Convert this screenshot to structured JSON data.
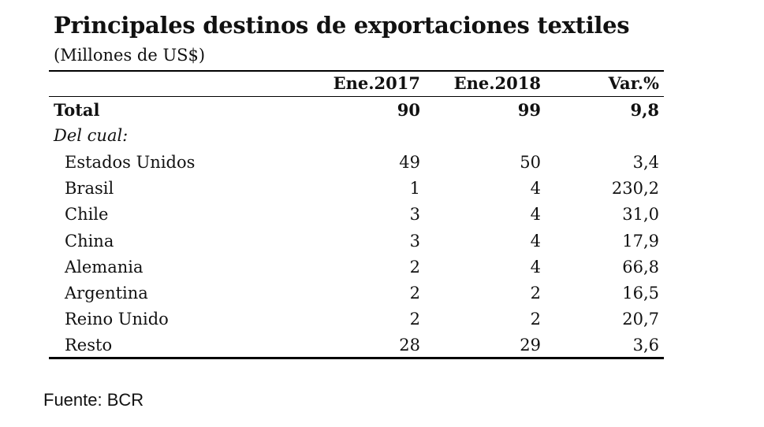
{
  "title": "Principales destinos de exportaciones textiles",
  "subtitle": "(Millones de US$)",
  "table": {
    "columns": [
      "Ene.2017",
      "Ene.2018",
      "Var.%"
    ],
    "total": [
      "Total",
      "90",
      "99",
      "9,8"
    ],
    "subheader": "Del cual:",
    "rows": [
      [
        "Estados Unidos",
        "49",
        "50",
        "3,4"
      ],
      [
        "Brasil",
        "1",
        "4",
        "230,2"
      ],
      [
        "Chile",
        "3",
        "4",
        "31,0"
      ],
      [
        "China",
        "3",
        "4",
        "17,9"
      ],
      [
        "Alemania",
        "2",
        "4",
        "66,8"
      ],
      [
        "Argentina",
        "2",
        "2",
        "16,5"
      ],
      [
        "Reino Unido",
        "2",
        "2",
        "20,7"
      ],
      [
        "Resto",
        "28",
        "29",
        "3,6"
      ]
    ]
  },
  "source": "Fuente: BCR"
}
